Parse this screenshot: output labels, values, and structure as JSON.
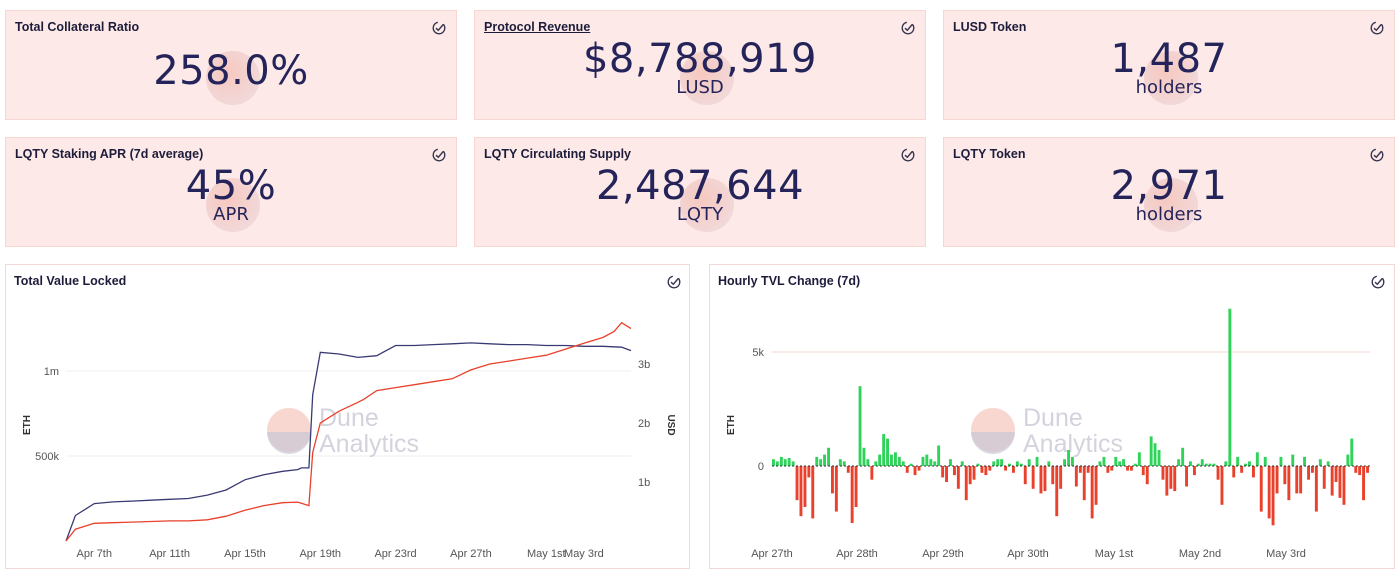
{
  "colors": {
    "card_bg": "#fde9e7",
    "navy": "#24245a",
    "red": "#e9412b",
    "green": "#2fd35a",
    "tvl_line": "#3a3a73"
  },
  "icons": {
    "card_check": "check-circle-icon"
  },
  "cards": [
    {
      "title": "Total Collateral Ratio",
      "value": "258.0%",
      "sub": ""
    },
    {
      "title": "Protocol Revenue",
      "value": "$8,788,919",
      "sub": "LUSD"
    },
    {
      "title": "LUSD Token",
      "value": "1,487",
      "sub": "holders"
    },
    {
      "title": "LQTY Staking APR (7d average)",
      "value": "45%",
      "sub": "APR"
    },
    {
      "title": "LQTY Circulating Supply",
      "value": "2,487,644",
      "sub": "LQTY"
    },
    {
      "title": "LQTY Token",
      "value": "2,971",
      "sub": "holders"
    }
  ],
  "watermark": {
    "line1": "Dune",
    "line2": "Analytics"
  },
  "tvl_chart": {
    "title": "Total Value Locked",
    "chart_data": {
      "type": "line",
      "x_ticks": [
        "Apr 7th",
        "Apr 11th",
        "Apr 15th",
        "Apr 19th",
        "Apr 23rd",
        "Apr 27th",
        "May 1st",
        "May 3rd"
      ],
      "ylabel_left": "ETH",
      "ylabel_right": "USD",
      "y_left_ticks": [
        "500k",
        "1m"
      ],
      "y_right_ticks": [
        "1b",
        "2b",
        "3b"
      ],
      "ylim_left": [
        0,
        1200000
      ],
      "ylim_right": [
        0,
        3700000000
      ],
      "series": [
        {
          "axis": "left",
          "x": [
            5.5,
            6,
            7,
            8,
            9,
            10,
            11,
            12,
            13,
            14,
            15,
            16,
            17,
            17.8,
            18,
            18.4,
            18.6,
            19,
            20,
            21,
            22,
            23,
            24,
            25,
            26,
            27,
            28,
            29,
            30,
            31,
            32,
            33,
            34,
            35,
            35.5
          ],
          "y": [
            0,
            150000,
            220000,
            230000,
            235000,
            240000,
            245000,
            250000,
            270000,
            300000,
            360000,
            390000,
            410000,
            420000,
            430000,
            430000,
            860000,
            1110000,
            1100000,
            1080000,
            1090000,
            1150000,
            1150000,
            1155000,
            1160000,
            1165000,
            1160000,
            1155000,
            1155000,
            1150000,
            1150000,
            1145000,
            1145000,
            1140000,
            1120000
          ]
        },
        {
          "axis": "right",
          "x": [
            5.5,
            6,
            7,
            8,
            9,
            10,
            11,
            12,
            13,
            14,
            15,
            16,
            17,
            17.8,
            18,
            18.4,
            18.6,
            19,
            19.5,
            20,
            21,
            21.3,
            22,
            23,
            24,
            25,
            26,
            27,
            28,
            29,
            30,
            31,
            32,
            33,
            34,
            34.6,
            35,
            35.5
          ],
          "y": [
            0,
            200000000,
            300000000,
            310000000,
            320000000,
            330000000,
            340000000,
            340000000,
            360000000,
            420000000,
            520000000,
            600000000,
            650000000,
            660000000,
            640000000,
            600000000,
            1500000000,
            2000000000,
            2100000000,
            2200000000,
            2350000000,
            2400000000,
            2550000000,
            2600000000,
            2650000000,
            2700000000,
            2750000000,
            2900000000,
            3000000000,
            3050000000,
            3100000000,
            3150000000,
            3250000000,
            3350000000,
            3450000000,
            3550000000,
            3700000000,
            3600000000
          ]
        }
      ]
    }
  },
  "hourly_chart": {
    "title": "Hourly TVL Change (7d)",
    "chart_data": {
      "type": "bar",
      "x_ticks": [
        "Apr 27th",
        "Apr 28th",
        "Apr 29th",
        "Apr 30th",
        "May 1st",
        "May 2nd",
        "May 3rd"
      ],
      "ylabel": "ETH",
      "y_ticks": [
        "0",
        "5k"
      ],
      "ylim": [
        -3300,
        7000
      ],
      "values": [
        300,
        200,
        400,
        300,
        350,
        200,
        -1500,
        -2200,
        -1800,
        -500,
        -2300,
        400,
        300,
        500,
        800,
        -1200,
        -2000,
        300,
        200,
        -300,
        -2500,
        -1800,
        3500,
        800,
        300,
        -600,
        200,
        500,
        1400,
        1200,
        500,
        600,
        400,
        200,
        -300,
        100,
        -400,
        -200,
        400,
        500,
        300,
        200,
        900,
        -500,
        -700,
        300,
        -400,
        -1000,
        200,
        -1500,
        -800,
        -600,
        100,
        -300,
        -400,
        -200,
        200,
        300,
        300,
        -200,
        100,
        -300,
        200,
        100,
        -800,
        300,
        -1000,
        400,
        -1200,
        -1100,
        200,
        -800,
        -2200,
        -1000,
        300,
        700,
        400,
        -900,
        -300,
        -1500,
        -300,
        -2300,
        -1700,
        200,
        400,
        -300,
        -200,
        400,
        200,
        300,
        -200,
        -200,
        100,
        600,
        -400,
        -800,
        1300,
        1000,
        700,
        -600,
        -1300,
        -1000,
        -1100,
        300,
        800,
        -900,
        200,
        -400,
        100,
        300,
        100,
        100,
        100,
        -600,
        -1700,
        200,
        6900,
        -500,
        400,
        -300,
        100,
        200,
        -500,
        600,
        -2000,
        400,
        -2300,
        -2600,
        -1200,
        400,
        -800,
        -1500,
        500,
        -1200,
        -1200,
        400,
        -600,
        -300,
        -2000,
        300,
        -1000,
        200,
        -1300,
        -700,
        -1400,
        -1700,
        500,
        1200,
        -300,
        -400,
        -1500,
        -300
      ]
    }
  }
}
